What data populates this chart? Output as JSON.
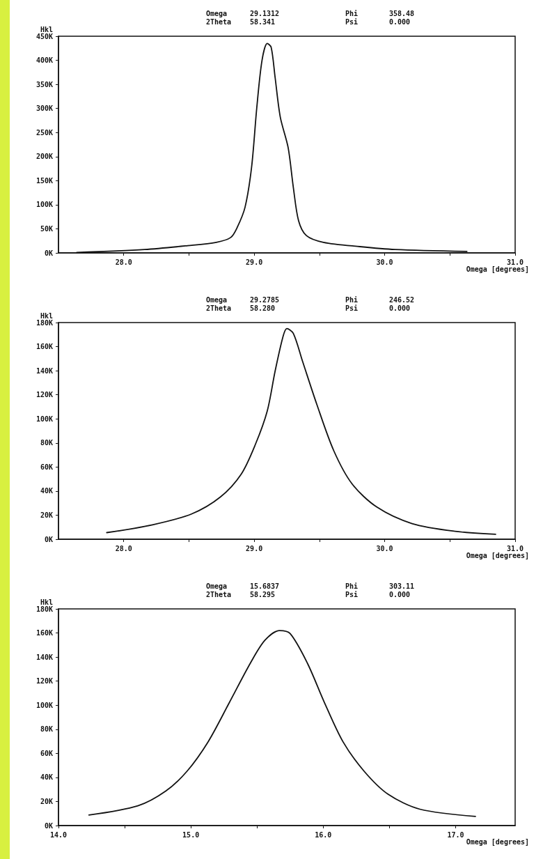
{
  "chart_data": [
    {
      "type": "line",
      "xlabel": "Omega [degrees]",
      "ylabel": "Hkl",
      "annotations": [
        "Omega 29.1312",
        "2Theta 58.341",
        "Phi 358.48",
        "Psi 0.000"
      ],
      "series": [
        {
          "color": "#111111",
          "x": [
            27.64,
            28.16,
            28.49,
            28.71,
            28.82,
            28.87,
            28.93,
            28.98,
            29.02,
            29.06,
            29.1,
            29.13,
            29.16,
            29.2,
            29.26,
            29.3,
            29.34,
            29.4,
            29.53,
            29.81,
            30.08,
            30.63
          ],
          "values": [
            1000,
            7000,
            15000,
            22000,
            32000,
            53000,
            95000,
            178000,
            302000,
            400000,
            435000,
            427000,
            365000,
            282000,
            219000,
            136000,
            67000,
            36000,
            22000,
            13000,
            7000,
            3000
          ]
        }
      ],
      "xlim": [
        27.5,
        31.0
      ],
      "xticks": [
        {
          "value": 28,
          "label": "28.0"
        },
        {
          "value": 28.5,
          "label": null
        },
        {
          "value": 29,
          "label": "29.0"
        },
        {
          "value": 29.5,
          "label": null
        },
        {
          "value": 30,
          "label": "30.0"
        },
        {
          "value": 30.5,
          "label": null
        },
        {
          "value": 31,
          "label": "31.0"
        }
      ],
      "ylim": [
        0,
        450000
      ],
      "yticks": [
        {
          "value": 0,
          "label": "0K"
        },
        {
          "value": 50000,
          "label": "50K"
        },
        {
          "value": 100000,
          "label": "100K"
        },
        {
          "value": 150000,
          "label": "150K"
        },
        {
          "value": 200000,
          "label": "200K"
        },
        {
          "value": 250000,
          "label": "250K"
        },
        {
          "value": 300000,
          "label": "300K"
        },
        {
          "value": 350000,
          "label": "350K"
        },
        {
          "value": 400000,
          "label": "400K"
        },
        {
          "value": 450000,
          "label": "450K"
        }
      ],
      "grid": false,
      "marker": "none",
      "line_style": "solid"
    },
    {
      "type": "line",
      "xlabel": "Omega [degrees]",
      "ylabel": "Hkl",
      "annotations": [
        "Omega 29.2785",
        "2Theta 58.280",
        "Phi 246.52",
        "Psi 0.000"
      ],
      "series": [
        {
          "color": "#111111",
          "x": [
            27.87,
            28.22,
            28.52,
            28.74,
            28.9,
            29.01,
            29.1,
            29.16,
            29.22,
            29.25,
            29.3,
            29.37,
            29.48,
            29.61,
            29.75,
            29.94,
            30.21,
            30.54,
            30.85
          ],
          "values": [
            5500,
            12000,
            21000,
            35000,
            54000,
            79000,
            106500,
            139500,
            168000,
            175000,
            171000,
            148000,
            112000,
            73500,
            46000,
            26700,
            13000,
            6600,
            4100
          ]
        }
      ],
      "xlim": [
        27.5,
        31.0
      ],
      "xticks": [
        {
          "value": 28,
          "label": "28.0"
        },
        {
          "value": 28.5,
          "label": null
        },
        {
          "value": 29,
          "label": "29.0"
        },
        {
          "value": 29.5,
          "label": null
        },
        {
          "value": 30,
          "label": "30.0"
        },
        {
          "value": 30.5,
          "label": null
        },
        {
          "value": 31,
          "label": "31.0"
        }
      ],
      "ylim": [
        0,
        180000
      ],
      "yticks": [
        {
          "value": 0,
          "label": "0K"
        },
        {
          "value": 20000,
          "label": "20K"
        },
        {
          "value": 40000,
          "label": "40K"
        },
        {
          "value": 60000,
          "label": "60K"
        },
        {
          "value": 80000,
          "label": "80K"
        },
        {
          "value": 100000,
          "label": "100K"
        },
        {
          "value": 120000,
          "label": "120K"
        },
        {
          "value": 140000,
          "label": "140K"
        },
        {
          "value": 160000,
          "label": "160K"
        },
        {
          "value": 180000,
          "label": "180K"
        }
      ],
      "grid": false,
      "marker": "none",
      "line_style": "solid"
    },
    {
      "type": "line",
      "xlabel": "Omega [degrees]",
      "ylabel": "Hkl",
      "annotations": [
        "Omega 15.6837",
        "2Theta 58.295",
        "Phi 303.11",
        "Psi 0.000"
      ],
      "series": [
        {
          "color": "#111111",
          "x": [
            14.23,
            14.6,
            14.81,
            14.97,
            15.13,
            15.29,
            15.45,
            15.56,
            15.67,
            15.75,
            15.88,
            16.01,
            16.15,
            16.31,
            16.49,
            16.73,
            17.15
          ],
          "values": [
            8700,
            16400,
            28600,
            45000,
            69500,
            102000,
            135000,
            154000,
            162000,
            159500,
            135000,
            102000,
            69500,
            45000,
            26000,
            13600,
            7600
          ]
        }
      ],
      "xlim": [
        14.0,
        17.45
      ],
      "xticks": [
        {
          "value": 14,
          "label": "14.0"
        },
        {
          "value": 14.5,
          "label": null
        },
        {
          "value": 15,
          "label": "15.0"
        },
        {
          "value": 15.5,
          "label": null
        },
        {
          "value": 16,
          "label": "16.0"
        },
        {
          "value": 16.5,
          "label": null
        },
        {
          "value": 17,
          "label": "17.0"
        }
      ],
      "ylim": [
        0,
        180000
      ],
      "yticks": [
        {
          "value": 0,
          "label": "0K"
        },
        {
          "value": 20000,
          "label": "20K"
        },
        {
          "value": 40000,
          "label": "40K"
        },
        {
          "value": 60000,
          "label": "60K"
        },
        {
          "value": 80000,
          "label": "80K"
        },
        {
          "value": 100000,
          "label": "100K"
        },
        {
          "value": 120000,
          "label": "120K"
        },
        {
          "value": 140000,
          "label": "140K"
        },
        {
          "value": 160000,
          "label": "160K"
        },
        {
          "value": 180000,
          "label": "180K"
        }
      ],
      "grid": false,
      "marker": "none",
      "line_style": "solid"
    }
  ]
}
